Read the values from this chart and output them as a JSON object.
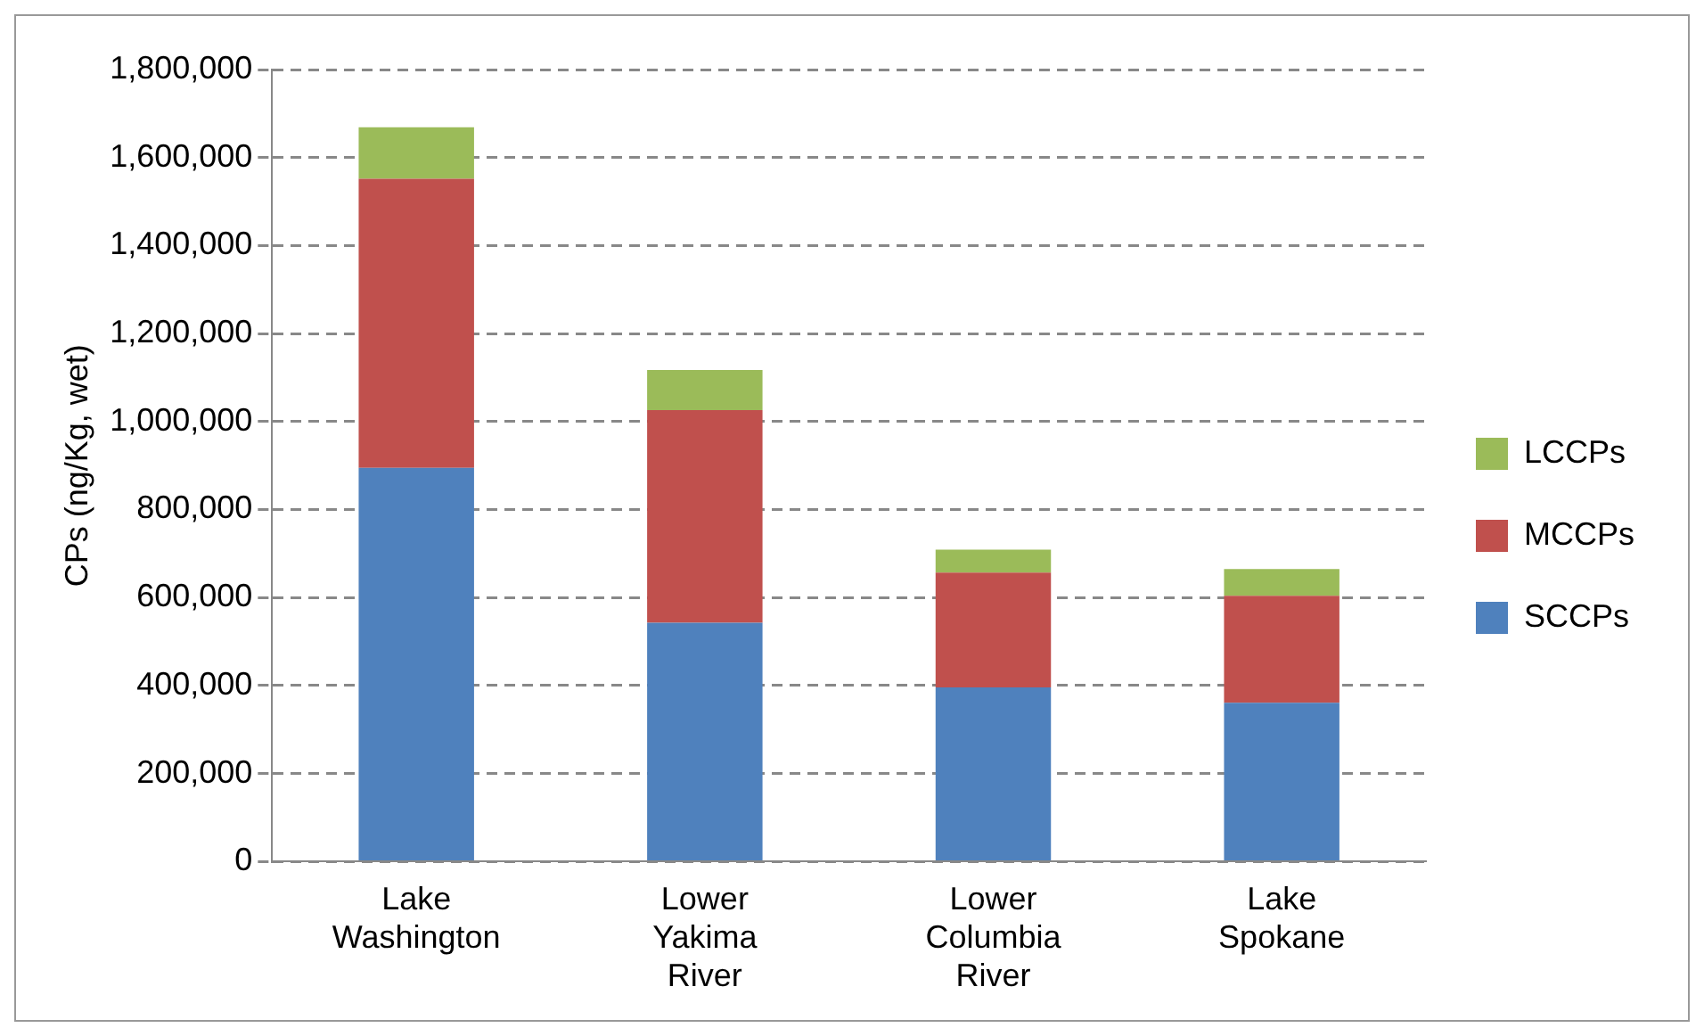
{
  "chart_data": {
    "type": "bar",
    "stacked": true,
    "ylabel": "CPs (ng/Kg, wet)",
    "categories": [
      "Lake Washington",
      "Lower Yakima River",
      "Lower Columbia River",
      "Lake Spokane"
    ],
    "series": [
      {
        "name": "SCCPs",
        "color": "#4f81bd",
        "values": [
          895000,
          543000,
          396000,
          361000
        ]
      },
      {
        "name": "MCCPs",
        "color": "#c0504d",
        "values": [
          657000,
          483000,
          261000,
          243000
        ]
      },
      {
        "name": "LCCPs",
        "color": "#9bbb59",
        "values": [
          117000,
          91000,
          52000,
          61000
        ]
      }
    ],
    "ylim": [
      0,
      1800000
    ],
    "yticks": [
      {
        "value": 0,
        "label": "0"
      },
      {
        "value": 200000,
        "label": "200,000"
      },
      {
        "value": 400000,
        "label": "400,000"
      },
      {
        "value": 600000,
        "label": "600,000"
      },
      {
        "value": 800000,
        "label": "800,000"
      },
      {
        "value": 1000000,
        "label": "1,000,000"
      },
      {
        "value": 1200000,
        "label": "1,200,000"
      },
      {
        "value": 1400000,
        "label": "1,400,000"
      },
      {
        "value": 1600000,
        "label": "1,600,000"
      },
      {
        "value": 1800000,
        "label": "1,800,000"
      }
    ],
    "grid": "y",
    "legend": "right"
  }
}
